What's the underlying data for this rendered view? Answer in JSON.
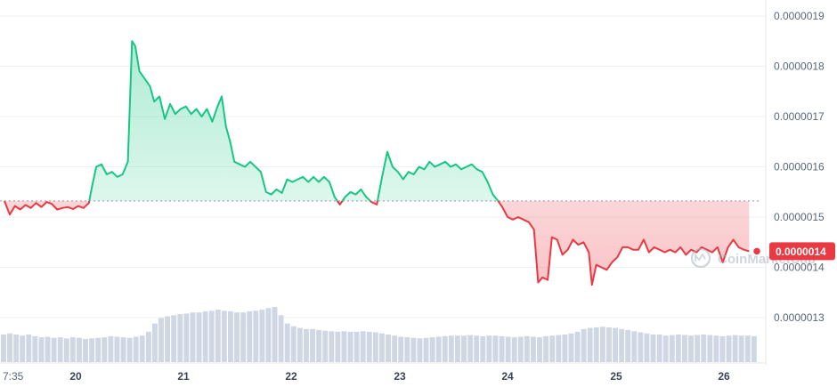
{
  "chart_data": {
    "type": "line",
    "title": "",
    "xlabel": "",
    "ylabel": "",
    "x_ticks": [
      "7:35",
      "20",
      "21",
      "22",
      "23",
      "24",
      "25",
      "26"
    ],
    "y_ticks": [
      "0.0000013",
      "0.0000014",
      "0.0000015",
      "0.0000016",
      "0.0000017",
      "0.0000018",
      "0.0000019"
    ],
    "ylim": [
      1.24e-06,
      1.92e-06
    ],
    "xlim": [
      0,
      7.15
    ],
    "reference_price": 1.532e-06,
    "current_price_label": "0.0000014",
    "current_price": 1.432e-06,
    "grid": true,
    "series": [
      {
        "values": [
          [
            0.0,
            1.532
          ],
          [
            0.05,
            1.505
          ],
          [
            0.1,
            1.522
          ],
          [
            0.15,
            1.515
          ],
          [
            0.2,
            1.524
          ],
          [
            0.25,
            1.518
          ],
          [
            0.3,
            1.528
          ],
          [
            0.35,
            1.52
          ],
          [
            0.4,
            1.53
          ],
          [
            0.45,
            1.526
          ],
          [
            0.5,
            1.515
          ],
          [
            0.55,
            1.518
          ],
          [
            0.6,
            1.52
          ],
          [
            0.65,
            1.516
          ],
          [
            0.7,
            1.522
          ],
          [
            0.75,
            1.518
          ],
          [
            0.8,
            1.528
          ],
          [
            0.83,
            1.56
          ],
          [
            0.87,
            1.6
          ],
          [
            0.92,
            1.605
          ],
          [
            0.97,
            1.585
          ],
          [
            1.02,
            1.59
          ],
          [
            1.07,
            1.58
          ],
          [
            1.12,
            1.585
          ],
          [
            1.17,
            1.61
          ],
          [
            1.21,
            1.85
          ],
          [
            1.24,
            1.84
          ],
          [
            1.28,
            1.79
          ],
          [
            1.33,
            1.775
          ],
          [
            1.38,
            1.76
          ],
          [
            1.42,
            1.73
          ],
          [
            1.47,
            1.74
          ],
          [
            1.52,
            1.695
          ],
          [
            1.57,
            1.725
          ],
          [
            1.62,
            1.705
          ],
          [
            1.67,
            1.715
          ],
          [
            1.72,
            1.72
          ],
          [
            1.77,
            1.705
          ],
          [
            1.82,
            1.715
          ],
          [
            1.87,
            1.7
          ],
          [
            1.92,
            1.715
          ],
          [
            1.97,
            1.69
          ],
          [
            2.02,
            1.72
          ],
          [
            2.06,
            1.74
          ],
          [
            2.1,
            1.68
          ],
          [
            2.14,
            1.65
          ],
          [
            2.18,
            1.61
          ],
          [
            2.23,
            1.605
          ],
          [
            2.28,
            1.6
          ],
          [
            2.33,
            1.61
          ],
          [
            2.38,
            1.6
          ],
          [
            2.43,
            1.59
          ],
          [
            2.48,
            1.55
          ],
          [
            2.53,
            1.545
          ],
          [
            2.58,
            1.555
          ],
          [
            2.63,
            1.548
          ],
          [
            2.68,
            1.575
          ],
          [
            2.73,
            1.57
          ],
          [
            2.78,
            1.575
          ],
          [
            2.83,
            1.58
          ],
          [
            2.88,
            1.57
          ],
          [
            2.93,
            1.58
          ],
          [
            2.98,
            1.57
          ],
          [
            3.03,
            1.58
          ],
          [
            3.08,
            1.57
          ],
          [
            3.13,
            1.54
          ],
          [
            3.18,
            1.525
          ],
          [
            3.23,
            1.54
          ],
          [
            3.28,
            1.55
          ],
          [
            3.33,
            1.545
          ],
          [
            3.38,
            1.555
          ],
          [
            3.43,
            1.54
          ],
          [
            3.48,
            1.53
          ],
          [
            3.53,
            1.525
          ],
          [
            3.58,
            1.58
          ],
          [
            3.63,
            1.63
          ],
          [
            3.68,
            1.6
          ],
          [
            3.73,
            1.59
          ],
          [
            3.78,
            1.575
          ],
          [
            3.83,
            1.59
          ],
          [
            3.88,
            1.585
          ],
          [
            3.93,
            1.6
          ],
          [
            3.98,
            1.595
          ],
          [
            4.03,
            1.61
          ],
          [
            4.08,
            1.6
          ],
          [
            4.13,
            1.605
          ],
          [
            4.18,
            1.61
          ],
          [
            4.23,
            1.6
          ],
          [
            4.28,
            1.605
          ],
          [
            4.33,
            1.595
          ],
          [
            4.38,
            1.6
          ],
          [
            4.43,
            1.605
          ],
          [
            4.48,
            1.595
          ],
          [
            4.53,
            1.59
          ],
          [
            4.58,
            1.57
          ],
          [
            4.63,
            1.545
          ],
          [
            4.68,
            1.532
          ],
          [
            4.72,
            1.52
          ],
          [
            4.77,
            1.5
          ],
          [
            4.82,
            1.495
          ],
          [
            4.87,
            1.5
          ],
          [
            4.92,
            1.495
          ],
          [
            4.97,
            1.49
          ],
          [
            5.02,
            1.475
          ],
          [
            5.06,
            1.37
          ],
          [
            5.1,
            1.38
          ],
          [
            5.15,
            1.375
          ],
          [
            5.19,
            1.46
          ],
          [
            5.24,
            1.455
          ],
          [
            5.29,
            1.425
          ],
          [
            5.34,
            1.435
          ],
          [
            5.39,
            1.455
          ],
          [
            5.44,
            1.445
          ],
          [
            5.49,
            1.45
          ],
          [
            5.54,
            1.43
          ],
          [
            5.57,
            1.365
          ],
          [
            5.61,
            1.405
          ],
          [
            5.66,
            1.4
          ],
          [
            5.71,
            1.395
          ],
          [
            5.76,
            1.41
          ],
          [
            5.81,
            1.42
          ],
          [
            5.86,
            1.44
          ],
          [
            5.91,
            1.44
          ],
          [
            5.96,
            1.435
          ],
          [
            6.01,
            1.435
          ],
          [
            6.06,
            1.455
          ],
          [
            6.11,
            1.43
          ],
          [
            6.16,
            1.44
          ],
          [
            6.21,
            1.435
          ],
          [
            6.26,
            1.43
          ],
          [
            6.31,
            1.435
          ],
          [
            6.36,
            1.43
          ],
          [
            6.41,
            1.44
          ],
          [
            6.46,
            1.425
          ],
          [
            6.51,
            1.435
          ],
          [
            6.56,
            1.43
          ],
          [
            6.61,
            1.44
          ],
          [
            6.66,
            1.435
          ],
          [
            6.71,
            1.43
          ],
          [
            6.76,
            1.44
          ],
          [
            6.81,
            1.41
          ],
          [
            6.86,
            1.44
          ],
          [
            6.91,
            1.455
          ],
          [
            6.96,
            1.44
          ],
          [
            7.01,
            1.435
          ],
          [
            7.06,
            1.432
          ]
        ],
        "value_scale": "x 1e-6",
        "up_color": "#16c784",
        "down_color": "#ea3943"
      }
    ],
    "volume": [
      0.5,
      0.52,
      0.5,
      0.48,
      0.5,
      0.47,
      0.45,
      0.46,
      0.44,
      0.45,
      0.43,
      0.45,
      0.44,
      0.42,
      0.43,
      0.44,
      0.45,
      0.47,
      0.46,
      0.45,
      0.44,
      0.46,
      0.48,
      0.55,
      0.7,
      0.8,
      0.83,
      0.85,
      0.87,
      0.88,
      0.9,
      0.9,
      0.92,
      0.93,
      0.95,
      0.93,
      0.92,
      0.9,
      0.9,
      0.92,
      0.93,
      0.95,
      0.98,
      1.0,
      0.85,
      0.7,
      0.65,
      0.62,
      0.6,
      0.6,
      0.58,
      0.57,
      0.56,
      0.55,
      0.56,
      0.55,
      0.55,
      0.56,
      0.55,
      0.54,
      0.52,
      0.5,
      0.48,
      0.46,
      0.45,
      0.44,
      0.43,
      0.44,
      0.45,
      0.46,
      0.47,
      0.48,
      0.48,
      0.48,
      0.49,
      0.48,
      0.47,
      0.48,
      0.48,
      0.47,
      0.46,
      0.45,
      0.46,
      0.47,
      0.46,
      0.45,
      0.47,
      0.48,
      0.49,
      0.5,
      0.52,
      0.55,
      0.6,
      0.62,
      0.63,
      0.64,
      0.63,
      0.62,
      0.6,
      0.58,
      0.56,
      0.54,
      0.52,
      0.5,
      0.5,
      0.48,
      0.49,
      0.5,
      0.49,
      0.48,
      0.49,
      0.5,
      0.49,
      0.48,
      0.47,
      0.48,
      0.49,
      0.48,
      0.48,
      0.47
    ],
    "colors": {
      "up": "#16c784",
      "down": "#ea3943",
      "grid": "#eff2f5",
      "volume": "#cfd6e4",
      "axis_text": "#58667e"
    }
  },
  "watermark": {
    "text": "CoinMarketCap"
  }
}
